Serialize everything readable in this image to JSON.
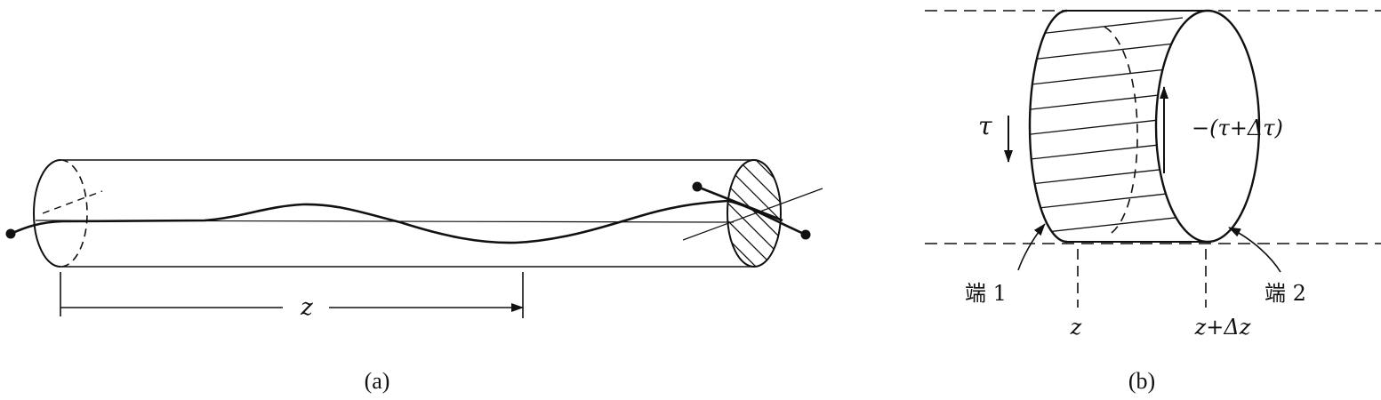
{
  "figure_a": {
    "caption": "(a)",
    "dimension_label": "z"
  },
  "figure_b": {
    "caption": "(b)",
    "tau_label": "τ",
    "neg_tau_label": "−(τ+Δτ)",
    "end1_label": "端 1",
    "end2_label": "端 2",
    "z_label": "z",
    "z_dz_label": "z+Δz"
  },
  "colors": {
    "ink": "#111111",
    "background": "#ffffff"
  }
}
